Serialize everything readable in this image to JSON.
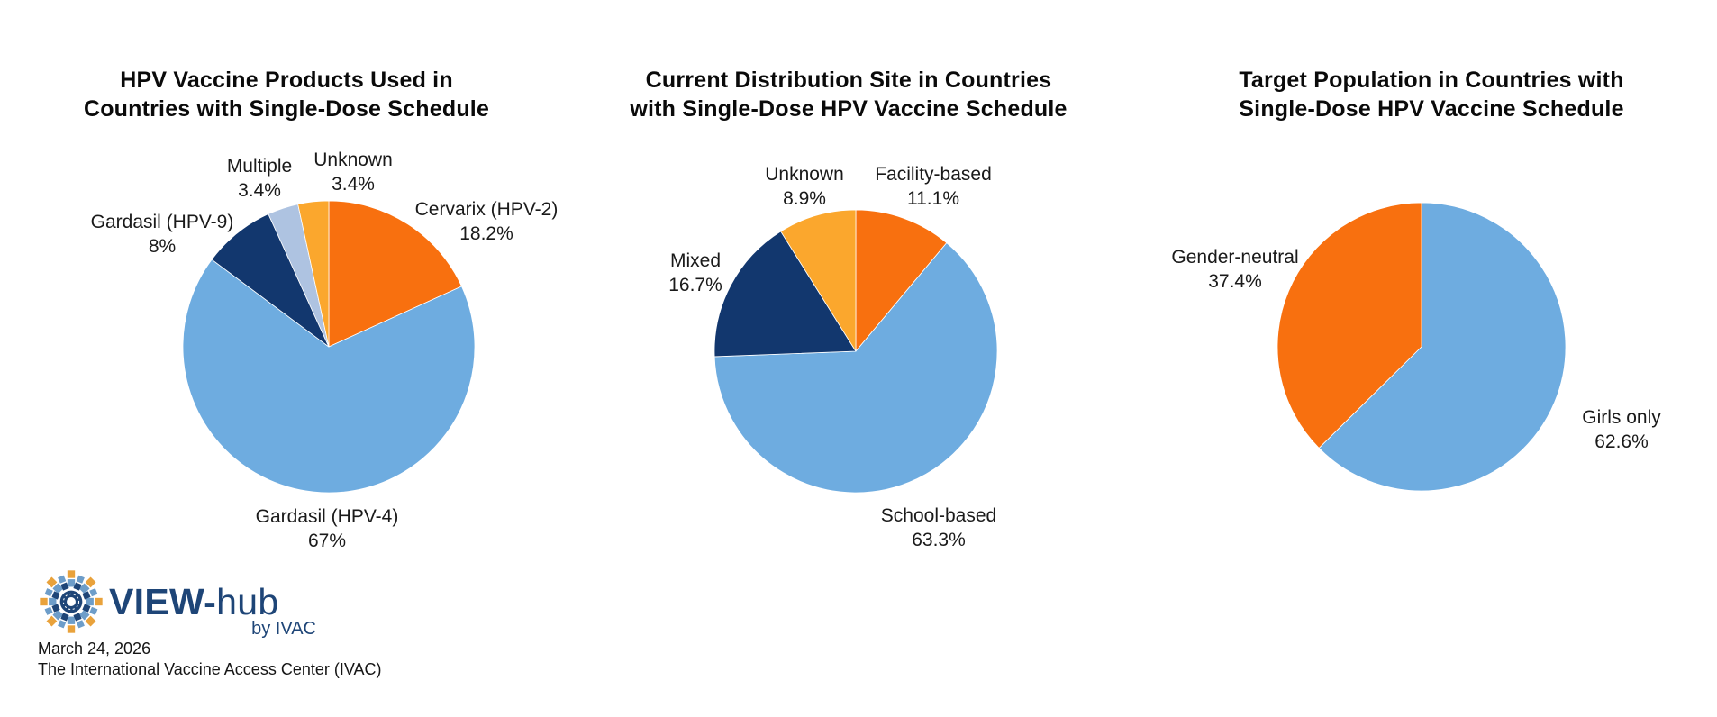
{
  "page": {
    "background": "#ffffff"
  },
  "colors": {
    "light_blue": "#6EACE0",
    "dark_orange": "#F8700F",
    "amber": "#FBA72D",
    "navy": "#12376E",
    "periwinkle": "#AEC3E1",
    "brand_navy": "#1E4577",
    "text": "#1A1A1A"
  },
  "chart_data": [
    {
      "type": "pie",
      "title": "HPV Vaccine Products Used in Countries with Single-Dose Schedule",
      "title_lines": [
        "HPV Vaccine Products Used in",
        "Countries with Single-Dose Schedule"
      ],
      "start_angle_deg": 0,
      "direction": "clockwise",
      "legend": "none",
      "label_style": "outside",
      "slices": [
        {
          "label": "Cervarix (HPV-2)",
          "value": 18.2,
          "value_label": "18.2%",
          "color": "#F8700F"
        },
        {
          "label": "Gardasil (HPV-4)",
          "value": 67,
          "value_label": "67%",
          "color": "#6EACE0"
        },
        {
          "label": "Gardasil (HPV-9)",
          "value": 8,
          "value_label": "8%",
          "color": "#12376E"
        },
        {
          "label": "Multiple",
          "value": 3.4,
          "value_label": "3.4%",
          "color": "#AEC3E1"
        },
        {
          "label": "Unknown",
          "value": 3.4,
          "value_label": "3.4%",
          "color": "#FBA72D"
        }
      ]
    },
    {
      "type": "pie",
      "title": "Current Distribution Site in Countries with Single-Dose HPV Vaccine Schedule",
      "title_lines": [
        "Current Distribution Site in Countries",
        "with Single-Dose HPV Vaccine Schedule"
      ],
      "start_angle_deg": 0,
      "direction": "clockwise",
      "legend": "none",
      "label_style": "outside",
      "slices": [
        {
          "label": "Facility-based",
          "value": 11.1,
          "value_label": "11.1%",
          "color": "#F8700F"
        },
        {
          "label": "School-based",
          "value": 63.3,
          "value_label": "63.3%",
          "color": "#6EACE0"
        },
        {
          "label": "Mixed",
          "value": 16.7,
          "value_label": "16.7%",
          "color": "#12376E"
        },
        {
          "label": "Unknown",
          "value": 8.9,
          "value_label": "8.9%",
          "color": "#FBA72D"
        }
      ]
    },
    {
      "type": "pie",
      "title": "Target Population in Countries with Single-Dose HPV Vaccine Schedule",
      "title_lines": [
        "Target Population in Countries with",
        "Single-Dose HPV Vaccine Schedule"
      ],
      "start_angle_deg": 0,
      "direction": "clockwise",
      "legend": "none",
      "label_style": "outside",
      "slices": [
        {
          "label": "Girls only",
          "value": 62.6,
          "value_label": "62.6%",
          "color": "#6EACE0"
        },
        {
          "label": "Gender-neutral",
          "value": 37.4,
          "value_label": "37.4%",
          "color": "#F8700F"
        }
      ]
    }
  ],
  "footer": {
    "brand_primary": "VIEW-",
    "brand_secondary": "hub",
    "brand_sub": "by IVAC",
    "date": "March 24, 2026",
    "organization": "The International Vaccine Access Center (IVAC)"
  }
}
